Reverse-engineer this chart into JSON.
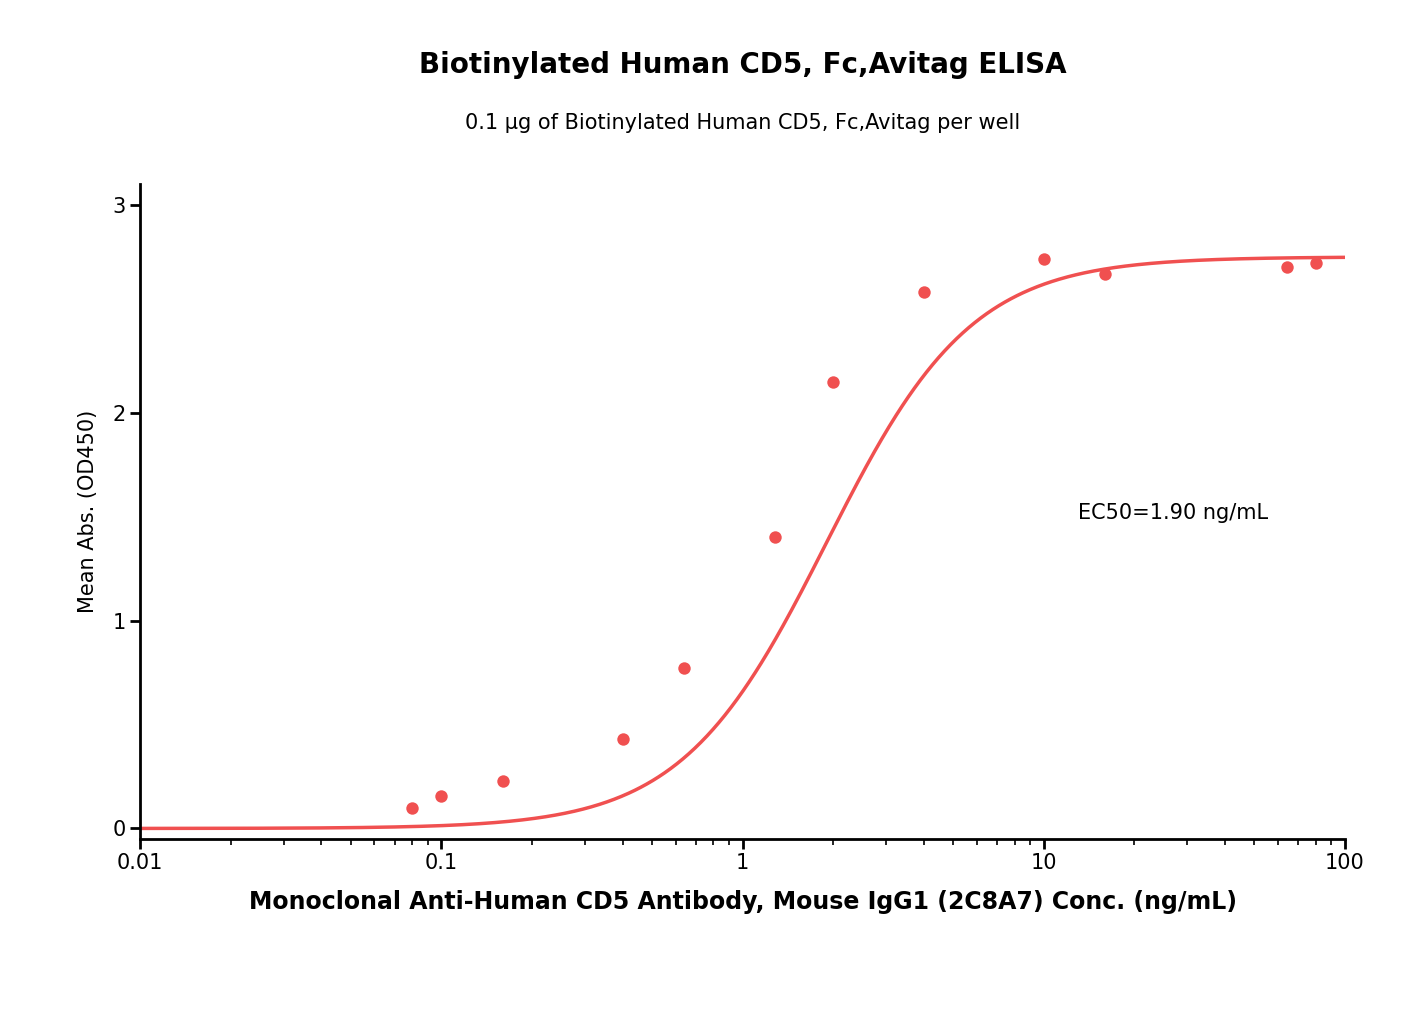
{
  "title": "Biotinylated Human CD5, Fc,Avitag ELISA",
  "subtitle": "0.1 μg of Biotinylated Human CD5, Fc,Avitag per well",
  "xlabel": "Monoclonal Anti-Human CD5 Antibody, Mouse IgG1 (2C8A7) Conc. (ng/mL)",
  "ylabel": "Mean Abs. (OD450)",
  "ec50_text": "EC50=1.90 ng/mL",
  "data_x": [
    0.08,
    0.1,
    0.16,
    0.4,
    0.64,
    1.28,
    2.0,
    4.0,
    10.0,
    16.0,
    64.0,
    80.0
  ],
  "data_y": [
    0.1,
    0.155,
    0.23,
    0.43,
    0.77,
    1.4,
    2.15,
    2.58,
    2.74,
    2.67,
    2.7,
    2.72
  ],
  "curve_color": "#F05050",
  "dot_color": "#F05050",
  "dot_size": 80,
  "xlim_log": [
    -2,
    2
  ],
  "ylim": [
    -0.05,
    3.1
  ],
  "yticks": [
    0,
    1,
    2,
    3
  ],
  "ec50_init": 1.9,
  "hill_init": 1.8,
  "bottom_init": 0.0,
  "top_init": 2.75,
  "background_color": "#ffffff",
  "title_fontsize": 20,
  "subtitle_fontsize": 15,
  "xlabel_fontsize": 17,
  "ylabel_fontsize": 15,
  "tick_fontsize": 15,
  "ec50_fontsize": 15
}
